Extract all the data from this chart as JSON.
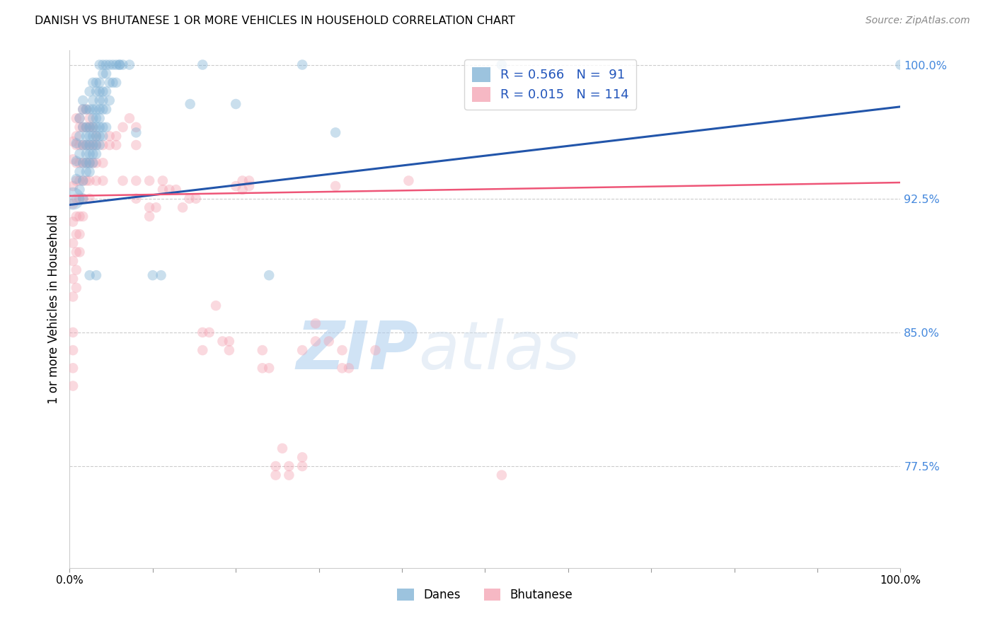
{
  "title": "DANISH VS BHUTANESE 1 OR MORE VEHICLES IN HOUSEHOLD CORRELATION CHART",
  "source": "Source: ZipAtlas.com",
  "ylabel": "1 or more Vehicles in Household",
  "xlim": [
    0.0,
    1.0
  ],
  "ylim": [
    0.718,
    1.008
  ],
  "yticks": [
    0.775,
    0.85,
    0.925,
    1.0
  ],
  "ytick_labels": [
    "77.5%",
    "85.0%",
    "92.5%",
    "100.0%"
  ],
  "xticks": [
    0.0,
    0.1,
    0.2,
    0.3,
    0.4,
    0.5,
    0.6,
    0.7,
    0.8,
    0.9,
    1.0
  ],
  "xtick_labels": [
    "0.0%",
    "",
    "",
    "",
    "",
    "",
    "",
    "",
    "",
    "",
    "100.0%"
  ],
  "danes_R": 0.566,
  "danes_N": 91,
  "bhutanese_R": 0.015,
  "bhutanese_N": 114,
  "danes_color": "#7BAFD4",
  "bhutanese_color": "#F4A0B0",
  "danes_line_color": "#2255AA",
  "bhutanese_line_color": "#EE5577",
  "watermark_zip": "ZIP",
  "watermark_atlas": "atlas",
  "danes_scatter": [
    [
      0.008,
      0.956
    ],
    [
      0.008,
      0.946
    ],
    [
      0.008,
      0.936
    ],
    [
      0.012,
      0.97
    ],
    [
      0.012,
      0.96
    ],
    [
      0.012,
      0.95
    ],
    [
      0.012,
      0.94
    ],
    [
      0.012,
      0.93
    ],
    [
      0.016,
      0.98
    ],
    [
      0.016,
      0.975
    ],
    [
      0.016,
      0.965
    ],
    [
      0.016,
      0.955
    ],
    [
      0.016,
      0.945
    ],
    [
      0.016,
      0.935
    ],
    [
      0.016,
      0.925
    ],
    [
      0.02,
      0.975
    ],
    [
      0.02,
      0.965
    ],
    [
      0.02,
      0.96
    ],
    [
      0.02,
      0.955
    ],
    [
      0.02,
      0.95
    ],
    [
      0.02,
      0.945
    ],
    [
      0.02,
      0.94
    ],
    [
      0.024,
      0.985
    ],
    [
      0.024,
      0.975
    ],
    [
      0.024,
      0.965
    ],
    [
      0.024,
      0.96
    ],
    [
      0.024,
      0.955
    ],
    [
      0.024,
      0.95
    ],
    [
      0.024,
      0.945
    ],
    [
      0.024,
      0.94
    ],
    [
      0.024,
      0.882
    ],
    [
      0.028,
      0.99
    ],
    [
      0.028,
      0.98
    ],
    [
      0.028,
      0.975
    ],
    [
      0.028,
      0.97
    ],
    [
      0.028,
      0.965
    ],
    [
      0.028,
      0.96
    ],
    [
      0.028,
      0.955
    ],
    [
      0.028,
      0.95
    ],
    [
      0.028,
      0.945
    ],
    [
      0.032,
      0.99
    ],
    [
      0.032,
      0.985
    ],
    [
      0.032,
      0.975
    ],
    [
      0.032,
      0.97
    ],
    [
      0.032,
      0.965
    ],
    [
      0.032,
      0.96
    ],
    [
      0.032,
      0.955
    ],
    [
      0.032,
      0.95
    ],
    [
      0.032,
      0.882
    ],
    [
      0.036,
      1.0
    ],
    [
      0.036,
      0.99
    ],
    [
      0.036,
      0.985
    ],
    [
      0.036,
      0.98
    ],
    [
      0.036,
      0.975
    ],
    [
      0.036,
      0.97
    ],
    [
      0.036,
      0.965
    ],
    [
      0.036,
      0.96
    ],
    [
      0.036,
      0.955
    ],
    [
      0.04,
      1.0
    ],
    [
      0.04,
      0.995
    ],
    [
      0.04,
      0.985
    ],
    [
      0.04,
      0.98
    ],
    [
      0.04,
      0.975
    ],
    [
      0.04,
      0.965
    ],
    [
      0.04,
      0.96
    ],
    [
      0.044,
      1.0
    ],
    [
      0.044,
      0.995
    ],
    [
      0.044,
      0.985
    ],
    [
      0.044,
      0.975
    ],
    [
      0.044,
      0.965
    ],
    [
      0.048,
      1.0
    ],
    [
      0.048,
      0.99
    ],
    [
      0.048,
      0.98
    ],
    [
      0.052,
      1.0
    ],
    [
      0.052,
      0.99
    ],
    [
      0.056,
      1.0
    ],
    [
      0.056,
      0.99
    ],
    [
      0.06,
      1.0
    ],
    [
      0.06,
      1.0
    ],
    [
      0.064,
      1.0
    ],
    [
      0.072,
      1.0
    ],
    [
      0.08,
      0.962
    ],
    [
      0.1,
      0.882
    ],
    [
      0.11,
      0.882
    ],
    [
      0.145,
      0.978
    ],
    [
      0.16,
      1.0
    ],
    [
      0.2,
      0.978
    ],
    [
      0.24,
      0.882
    ],
    [
      0.28,
      1.0
    ],
    [
      0.32,
      0.962
    ],
    [
      0.52,
      1.0
    ],
    [
      1.0,
      1.0
    ]
  ],
  "danes_large_scatter": [
    [
      0.004,
      0.925
    ]
  ],
  "bhutanese_scatter": [
    [
      0.004,
      0.957
    ],
    [
      0.004,
      0.947
    ],
    [
      0.004,
      0.932
    ],
    [
      0.004,
      0.922
    ],
    [
      0.004,
      0.912
    ],
    [
      0.004,
      0.9
    ],
    [
      0.004,
      0.89
    ],
    [
      0.004,
      0.88
    ],
    [
      0.004,
      0.87
    ],
    [
      0.004,
      0.85
    ],
    [
      0.004,
      0.84
    ],
    [
      0.004,
      0.83
    ],
    [
      0.004,
      0.82
    ],
    [
      0.008,
      0.97
    ],
    [
      0.008,
      0.96
    ],
    [
      0.008,
      0.955
    ],
    [
      0.008,
      0.945
    ],
    [
      0.008,
      0.935
    ],
    [
      0.008,
      0.925
    ],
    [
      0.008,
      0.915
    ],
    [
      0.008,
      0.905
    ],
    [
      0.008,
      0.895
    ],
    [
      0.008,
      0.885
    ],
    [
      0.008,
      0.875
    ],
    [
      0.012,
      0.97
    ],
    [
      0.012,
      0.965
    ],
    [
      0.012,
      0.955
    ],
    [
      0.012,
      0.945
    ],
    [
      0.012,
      0.935
    ],
    [
      0.012,
      0.925
    ],
    [
      0.012,
      0.915
    ],
    [
      0.012,
      0.905
    ],
    [
      0.012,
      0.895
    ],
    [
      0.016,
      0.975
    ],
    [
      0.016,
      0.965
    ],
    [
      0.016,
      0.955
    ],
    [
      0.016,
      0.945
    ],
    [
      0.016,
      0.935
    ],
    [
      0.016,
      0.925
    ],
    [
      0.016,
      0.915
    ],
    [
      0.02,
      0.975
    ],
    [
      0.02,
      0.965
    ],
    [
      0.02,
      0.955
    ],
    [
      0.02,
      0.945
    ],
    [
      0.02,
      0.935
    ],
    [
      0.024,
      0.97
    ],
    [
      0.024,
      0.965
    ],
    [
      0.024,
      0.955
    ],
    [
      0.024,
      0.945
    ],
    [
      0.024,
      0.935
    ],
    [
      0.024,
      0.925
    ],
    [
      0.028,
      0.965
    ],
    [
      0.028,
      0.955
    ],
    [
      0.028,
      0.945
    ],
    [
      0.032,
      0.96
    ],
    [
      0.032,
      0.955
    ],
    [
      0.032,
      0.945
    ],
    [
      0.032,
      0.935
    ],
    [
      0.04,
      0.955
    ],
    [
      0.04,
      0.945
    ],
    [
      0.04,
      0.935
    ],
    [
      0.048,
      0.96
    ],
    [
      0.048,
      0.955
    ],
    [
      0.056,
      0.96
    ],
    [
      0.056,
      0.955
    ],
    [
      0.064,
      0.965
    ],
    [
      0.064,
      0.935
    ],
    [
      0.072,
      0.97
    ],
    [
      0.08,
      0.965
    ],
    [
      0.08,
      0.955
    ],
    [
      0.08,
      0.935
    ],
    [
      0.08,
      0.925
    ],
    [
      0.096,
      0.935
    ],
    [
      0.096,
      0.92
    ],
    [
      0.096,
      0.915
    ],
    [
      0.104,
      0.92
    ],
    [
      0.112,
      0.935
    ],
    [
      0.112,
      0.93
    ],
    [
      0.12,
      0.93
    ],
    [
      0.128,
      0.93
    ],
    [
      0.136,
      0.92
    ],
    [
      0.144,
      0.925
    ],
    [
      0.152,
      0.925
    ],
    [
      0.16,
      0.85
    ],
    [
      0.16,
      0.84
    ],
    [
      0.168,
      0.85
    ],
    [
      0.176,
      0.865
    ],
    [
      0.184,
      0.845
    ],
    [
      0.192,
      0.845
    ],
    [
      0.192,
      0.84
    ],
    [
      0.2,
      0.932
    ],
    [
      0.208,
      0.935
    ],
    [
      0.208,
      0.93
    ],
    [
      0.216,
      0.935
    ],
    [
      0.216,
      0.932
    ],
    [
      0.232,
      0.84
    ],
    [
      0.232,
      0.83
    ],
    [
      0.24,
      0.83
    ],
    [
      0.248,
      0.775
    ],
    [
      0.248,
      0.77
    ],
    [
      0.256,
      0.785
    ],
    [
      0.264,
      0.775
    ],
    [
      0.264,
      0.77
    ],
    [
      0.28,
      0.84
    ],
    [
      0.28,
      0.78
    ],
    [
      0.28,
      0.775
    ],
    [
      0.296,
      0.855
    ],
    [
      0.296,
      0.845
    ],
    [
      0.312,
      0.845
    ],
    [
      0.32,
      0.932
    ],
    [
      0.328,
      0.84
    ],
    [
      0.328,
      0.83
    ],
    [
      0.336,
      0.83
    ],
    [
      0.368,
      0.84
    ],
    [
      0.408,
      0.935
    ],
    [
      0.52,
      0.77
    ]
  ],
  "danes_line": {
    "x0": 0.0,
    "y0": 0.9215,
    "x1": 1.0,
    "y1": 0.9765
  },
  "bhutanese_line": {
    "x0": 0.0,
    "y0": 0.9265,
    "x1": 1.0,
    "y1": 0.934
  },
  "marker_size": 110,
  "large_marker_size": 520,
  "marker_alpha": 0.4
}
